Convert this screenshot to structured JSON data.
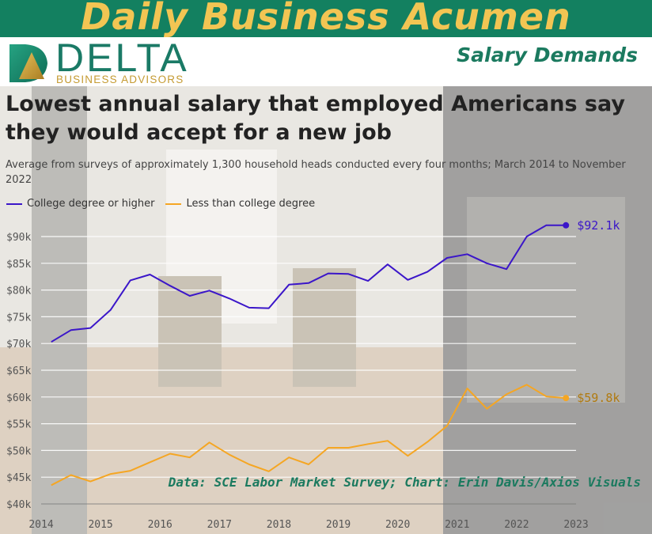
{
  "banner": {
    "title": "Daily Business Acumen"
  },
  "brand": {
    "name": "DELTA",
    "tagline": "BUSINESS ADVISORS"
  },
  "section": {
    "label": "Salary Demands"
  },
  "colors": {
    "banner": "#138060",
    "banner_text": "#f2c553",
    "college": "#3b16c9",
    "no_college": "#f5a623",
    "brand_green": "#1b7a5f",
    "brand_gold": "#c59b32"
  },
  "icons": {
    "logo": "delta-triangle-logo-icon"
  },
  "source_note": "Data: SCE Labor Market Survey; Chart: Erin Davis/Axios Visuals",
  "chart_data": {
    "type": "line",
    "title": "Lowest annual salary that employed Americans say they would accept for a new job",
    "subtitle": "Average from surveys of approximately 1,300 household heads conducted every four months; March 2014 to November 2022",
    "xlabel": "",
    "ylabel": "",
    "x": [
      2014.17,
      2014.5,
      2014.83,
      2015.17,
      2015.5,
      2015.83,
      2016.17,
      2016.5,
      2016.83,
      2017.17,
      2017.5,
      2017.83,
      2018.17,
      2018.5,
      2018.83,
      2019.17,
      2019.5,
      2019.83,
      2020.17,
      2020.5,
      2020.83,
      2021.17,
      2021.5,
      2021.83,
      2022.17,
      2022.5,
      2022.83
    ],
    "series": [
      {
        "name": "College degree or higher",
        "color": "#3b16c9",
        "end_label": "$92.1k",
        "values": [
          70.3,
          72.5,
          72.9,
          76.3,
          81.8,
          82.9,
          80.8,
          78.9,
          79.9,
          78.4,
          76.7,
          76.6,
          81.0,
          81.3,
          83.1,
          83.0,
          81.7,
          84.8,
          81.9,
          83.4,
          86.0,
          86.7,
          85.0,
          83.9,
          90.0,
          92.1,
          92.1
        ]
      },
      {
        "name": "Less than college degree",
        "color": "#f5a623",
        "end_label": "$59.8k",
        "values": [
          43.5,
          45.4,
          44.2,
          45.6,
          46.2,
          47.8,
          49.4,
          48.7,
          51.5,
          49.2,
          47.4,
          46.1,
          48.7,
          47.4,
          50.5,
          50.5,
          51.2,
          51.8,
          49.0,
          51.6,
          54.6,
          61.6,
          57.8,
          60.5,
          62.3,
          60.1,
          59.8
        ]
      }
    ],
    "yticks": [
      40,
      45,
      50,
      55,
      60,
      65,
      70,
      75,
      80,
      85,
      90
    ],
    "ytick_labels": [
      "$40k",
      "$45k",
      "$50k",
      "$55k",
      "$60k",
      "$65k",
      "$70k",
      "$75k",
      "$80k",
      "$85k",
      "$90k"
    ],
    "xticks": [
      2014,
      2015,
      2016,
      2017,
      2018,
      2019,
      2020,
      2021,
      2022,
      2023
    ],
    "xtick_labels": [
      "2014",
      "2015",
      "2016",
      "2017",
      "2018",
      "2019",
      "2020",
      "2021",
      "2022",
      "2023"
    ],
    "ylim": [
      40,
      90
    ],
    "xlim": [
      2014,
      2023
    ],
    "grid": true,
    "legend": "top-left"
  }
}
